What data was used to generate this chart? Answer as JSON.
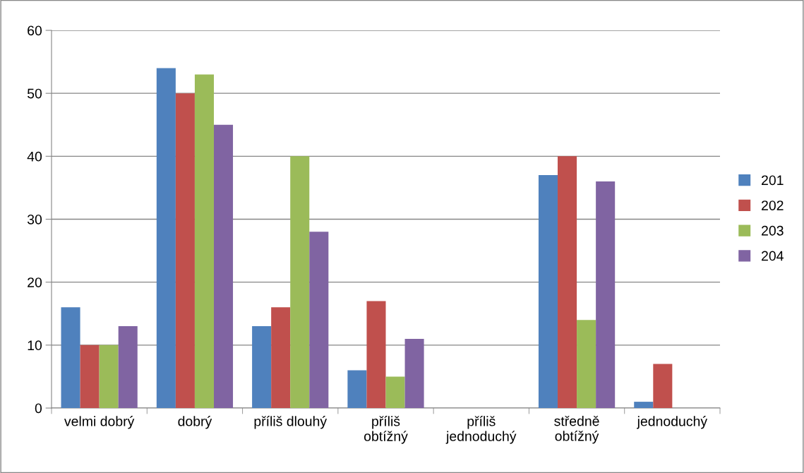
{
  "chart_data": {
    "type": "bar",
    "categories": [
      "velmi dobrý",
      "dobrý",
      "příliš dlouhý",
      "příliš\nobtížný",
      "příliš\njednoduchý",
      "středně\nobtížný",
      "jednoduchý"
    ],
    "series": [
      {
        "name": "201",
        "color": "#4f81bd",
        "values": [
          16,
          54,
          13,
          6,
          0,
          37,
          1
        ]
      },
      {
        "name": "202",
        "color": "#c0504d",
        "values": [
          10,
          50,
          16,
          17,
          0,
          40,
          7
        ]
      },
      {
        "name": "203",
        "color": "#9bbb59",
        "values": [
          10,
          53,
          40,
          5,
          0,
          14,
          0
        ]
      },
      {
        "name": "204",
        "color": "#8064a2",
        "values": [
          13,
          45,
          28,
          11,
          0,
          36,
          0
        ]
      }
    ],
    "ylim": [
      0,
      60
    ],
    "yticks": [
      0,
      10,
      20,
      30,
      40,
      50,
      60
    ],
    "grid": "y",
    "legend": "right"
  }
}
